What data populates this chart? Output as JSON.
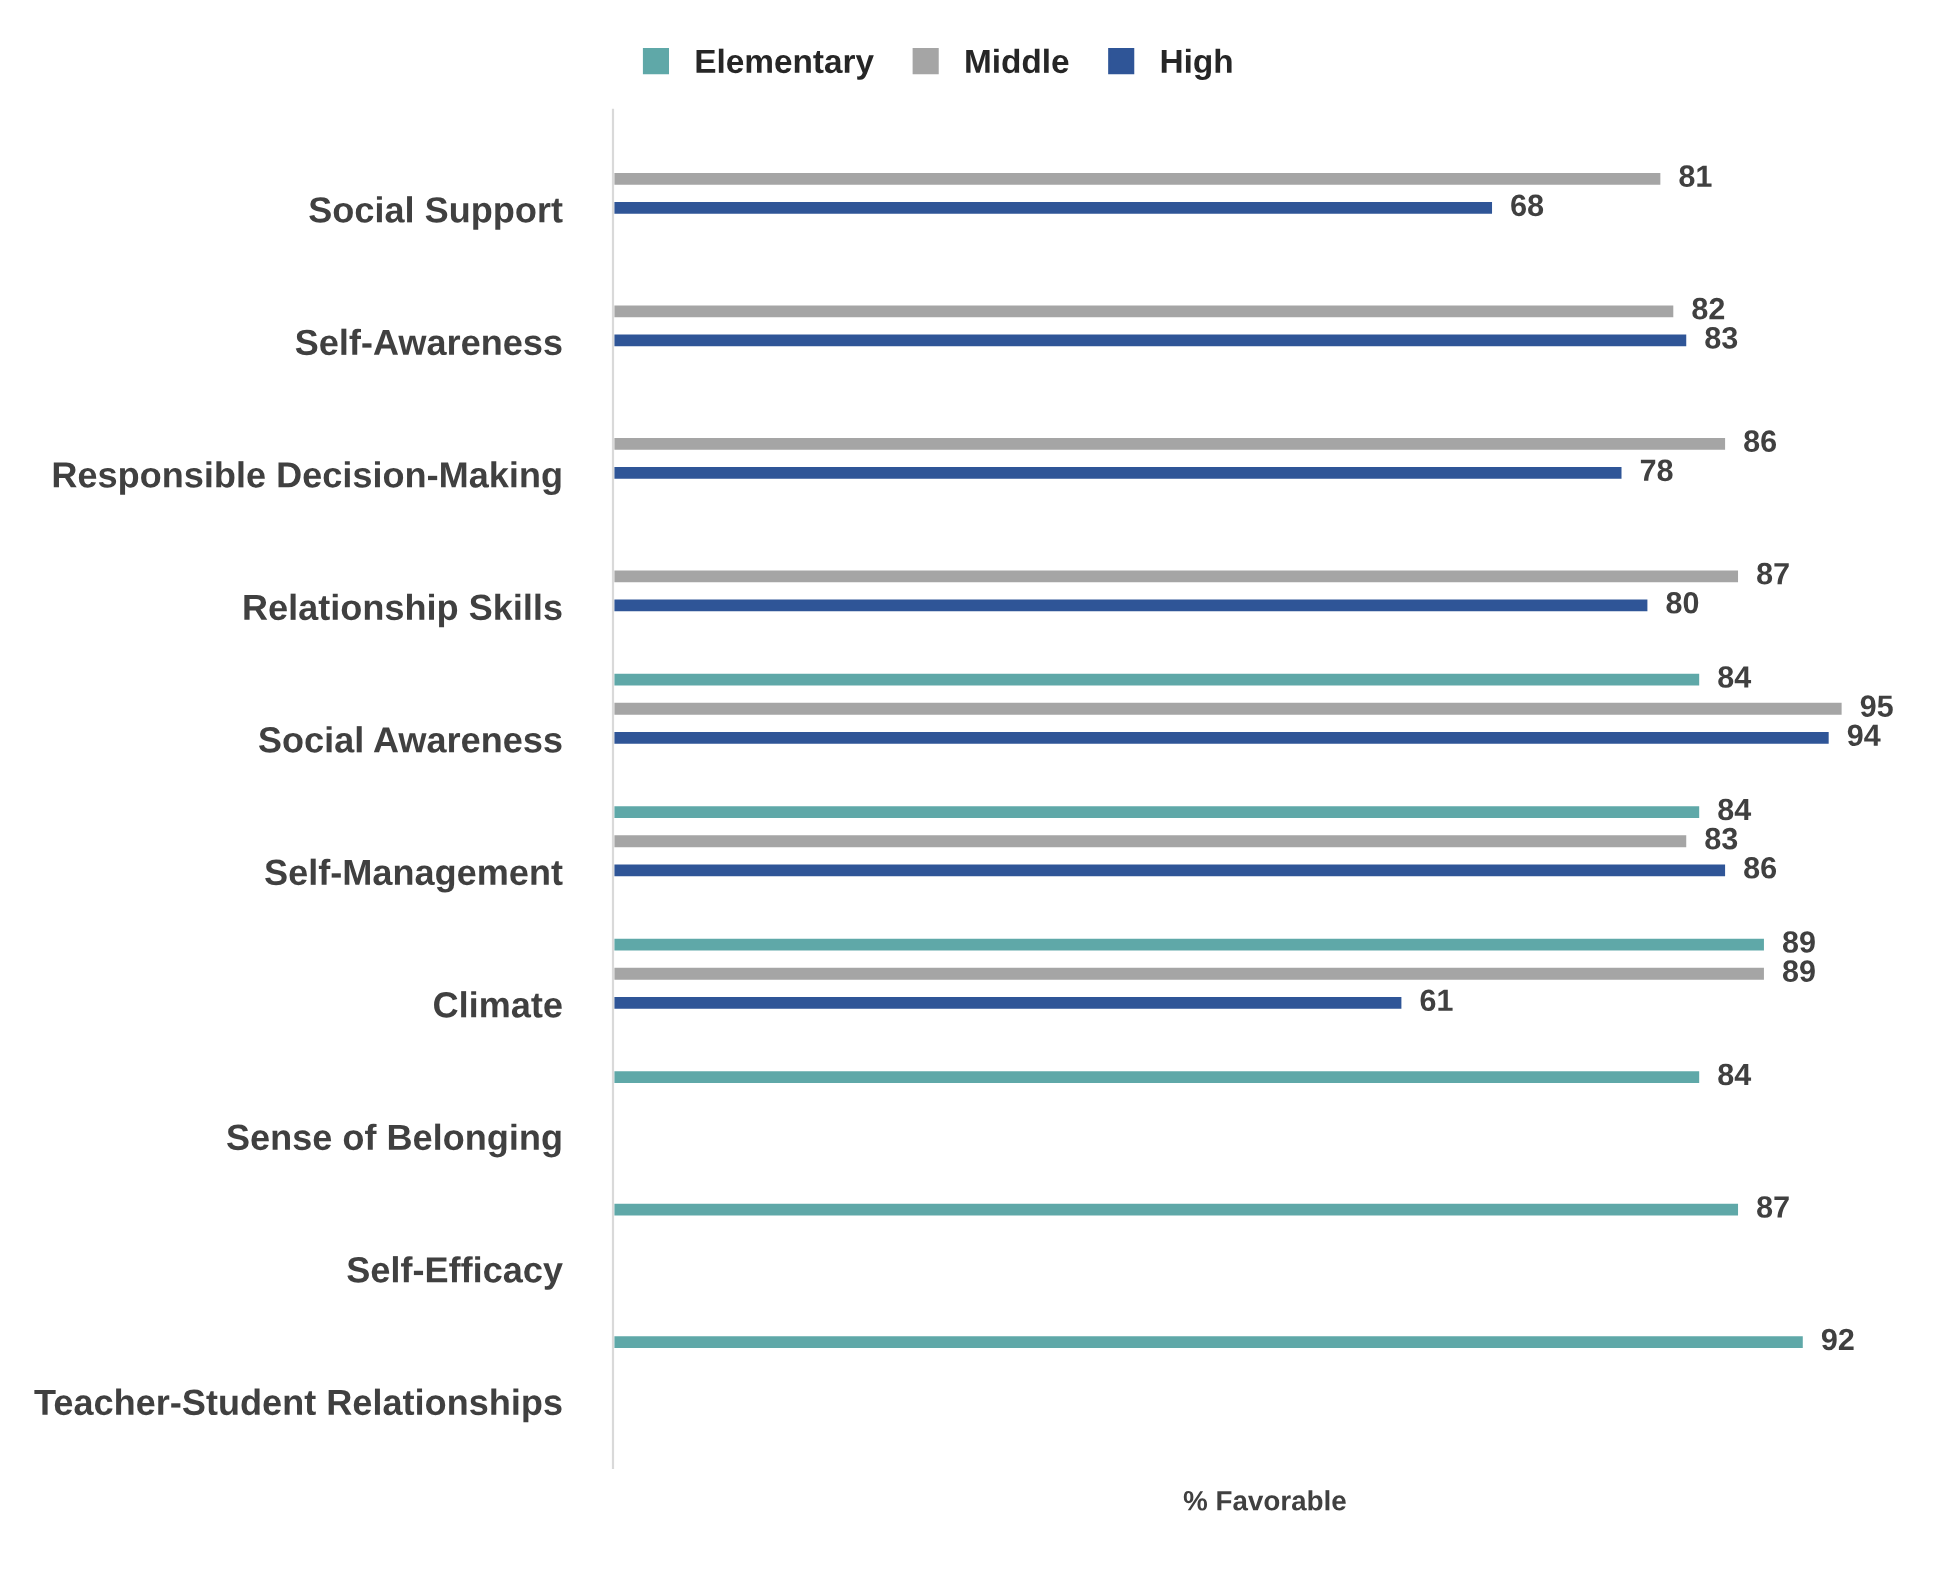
{
  "chart_data": {
    "type": "bar",
    "orientation": "horizontal",
    "xlabel": "% Favorable",
    "categories": [
      "Social Support",
      "Self-Awareness",
      "Responsible Decision-Making",
      "Relationship Skills",
      "Social Awareness",
      "Self-Management",
      "Climate",
      "Sense of Belonging",
      "Self-Efficacy",
      "Teacher-Student Relationships"
    ],
    "series": [
      {
        "name": "Elementary",
        "color": "#5fa8a8",
        "values": [
          null,
          null,
          null,
          null,
          84,
          84,
          89,
          84,
          87,
          92
        ]
      },
      {
        "name": "Middle",
        "color": "#a5a5a5",
        "values": [
          81,
          82,
          86,
          87,
          95,
          83,
          89,
          null,
          null,
          null
        ]
      },
      {
        "name": "High",
        "color": "#2f5597",
        "values": [
          68,
          83,
          78,
          80,
          94,
          86,
          61,
          null,
          null,
          null
        ]
      }
    ],
    "tick_labels": "y",
    "data_labels": true,
    "legend": "top",
    "grid": false
  }
}
